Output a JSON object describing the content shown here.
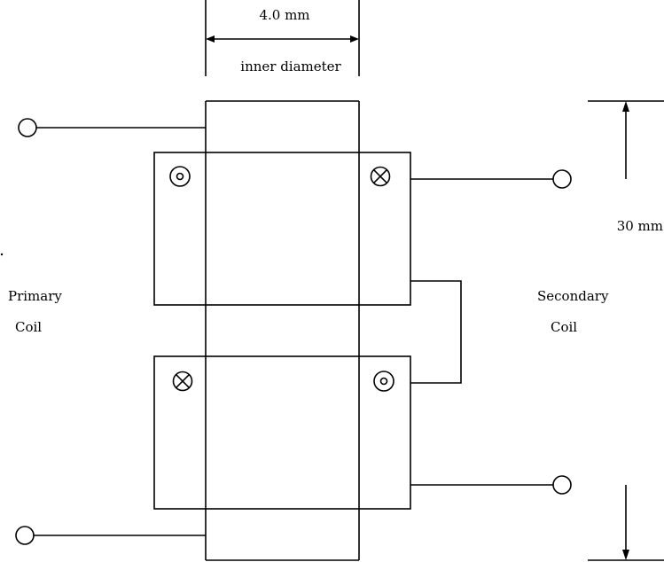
{
  "dimensions": {
    "inner_diameter_value": "4.0 mm",
    "inner_diameter_label": "inner diameter",
    "height_value": "30 mm"
  },
  "labels": {
    "primary_line1": "Primary",
    "primary_line2": "Coil",
    "secondary_line1": "Secondary",
    "secondary_line2": "Coil"
  },
  "current_direction_markers": {
    "upper_coil": [
      "out-of-page",
      "into-page"
    ],
    "lower_coil": [
      "into-page",
      "out-of-page"
    ]
  }
}
